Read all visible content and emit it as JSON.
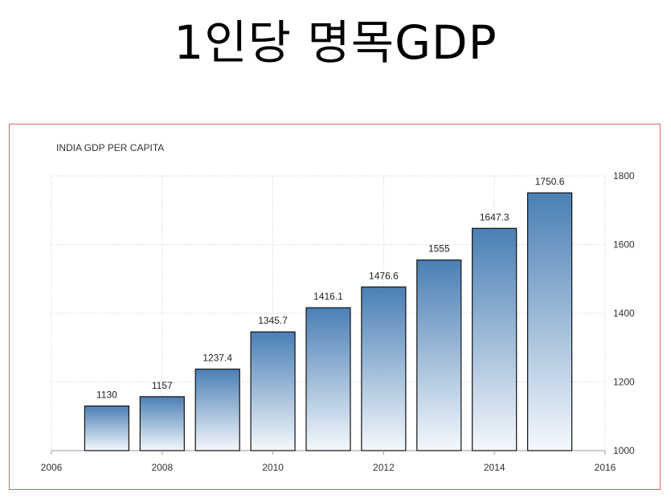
{
  "page": {
    "title": "1인당 명목GDP"
  },
  "chart_data": {
    "type": "bar",
    "title": "INDIA GDP PER CAPITA",
    "xlabel": "",
    "ylabel": "",
    "x": [
      2007,
      2008,
      2009,
      2010,
      2011,
      2012,
      2013,
      2014,
      2015
    ],
    "values": [
      1130,
      1157,
      1237.4,
      1345.7,
      1416.1,
      1476.6,
      1555,
      1647.3,
      1750.6
    ],
    "data_labels": [
      "1130",
      "1157",
      "1237.4",
      "1345.7",
      "1416.1",
      "1476.6",
      "1555",
      "1647.3",
      "1750.6"
    ],
    "xlim": [
      2006,
      2016
    ],
    "ylim": [
      1000,
      1800
    ],
    "x_ticks": [
      "2006",
      "2008",
      "2010",
      "2012",
      "2014",
      "2016"
    ],
    "y_ticks": [
      "1000",
      "1200",
      "1400",
      "1600",
      "1800"
    ],
    "y_axis_side": "right",
    "grid": true,
    "colors": {
      "bar_top": "#4a7fb5",
      "bar_bottom": "#f4f8fc",
      "bar_stroke": "#111111",
      "frame": "#e06060",
      "grid": "#cccccc"
    }
  }
}
